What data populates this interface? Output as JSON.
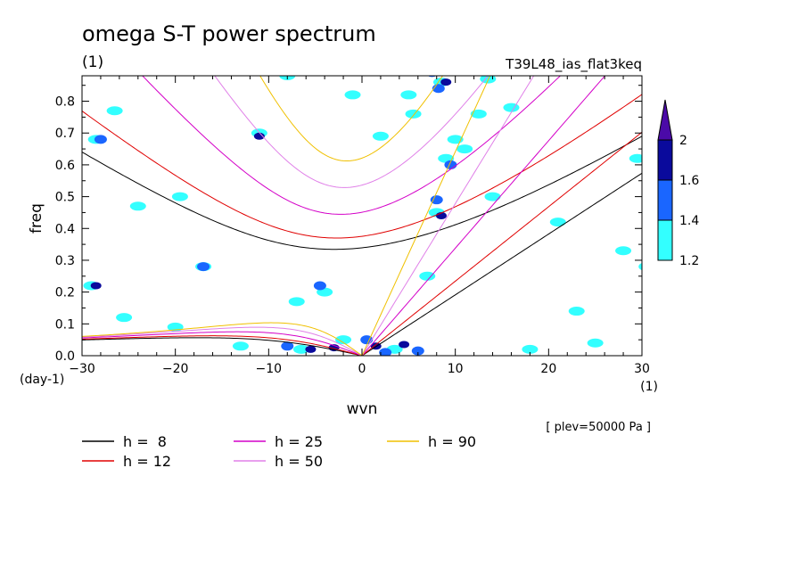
{
  "chart_data": {
    "type": "contour",
    "title": "omega S-T power spectrum",
    "subtitle_units": "(1)",
    "run_label": "T39L48_ias_flat3keq",
    "xlabel": "wvn",
    "ylabel": "freq",
    "x_units": "(1)",
    "y_units": "(day-1)",
    "plev_note": "[ plev=50000 Pa ]",
    "xlim": [
      -30,
      30
    ],
    "ylim": [
      0,
      0.88
    ],
    "x_ticks": [
      -30,
      -20,
      -10,
      0,
      10,
      20,
      30
    ],
    "x_tick_labels": [
      "−30",
      "−20",
      "−10",
      "0",
      "10",
      "20",
      "30"
    ],
    "y_ticks": [
      0.0,
      0.1,
      0.2,
      0.3,
      0.4,
      0.5,
      0.6,
      0.7,
      0.8
    ],
    "y_tick_labels": [
      "0.0",
      "0.1",
      "0.2",
      "0.3",
      "0.4",
      "0.5",
      "0.6",
      "0.7",
      "0.8"
    ],
    "colorbar": {
      "levels": [
        1.2,
        1.4,
        1.6,
        2
      ],
      "labels": [
        "1.2",
        "1.4",
        "1.6",
        "2"
      ],
      "colors": [
        "#33ffff",
        "#1a66ff",
        "#0a0a9c",
        "#4b0aa8"
      ]
    },
    "dispersion_curves": [
      {
        "label": "h =  8",
        "h": 8,
        "color": "#000000"
      },
      {
        "label": "h = 12",
        "h": 12,
        "color": "#e00000"
      },
      {
        "label": "h = 25",
        "h": 25,
        "color": "#d400c8"
      },
      {
        "label": "h = 50",
        "h": 50,
        "color": "#e080e8"
      },
      {
        "label": "h = 90",
        "h": 90,
        "color": "#f0c000"
      }
    ],
    "power_blobs": [
      {
        "x": -5.5,
        "y": 0.02,
        "level": 3
      },
      {
        "x": -3,
        "y": 0.025,
        "level": 3
      },
      {
        "x": 1.5,
        "y": 0.03,
        "level": 3
      },
      {
        "x": 4.5,
        "y": 0.035,
        "level": 3
      },
      {
        "x": -8,
        "y": 0.03,
        "level": 2
      },
      {
        "x": 0.5,
        "y": 0.05,
        "level": 2
      },
      {
        "x": 2.5,
        "y": 0.01,
        "level": 2
      },
      {
        "x": 6,
        "y": 0.015,
        "level": 2
      },
      {
        "x": 9,
        "y": 0.86,
        "level": 3
      },
      {
        "x": 9.5,
        "y": 0.6,
        "level": 2
      },
      {
        "x": 8,
        "y": 0.49,
        "level": 2
      },
      {
        "x": 8.5,
        "y": 0.44,
        "level": 3
      },
      {
        "x": 8.2,
        "y": 0.84,
        "level": 2
      },
      {
        "x": 7.5,
        "y": 0.89,
        "level": 2
      },
      {
        "x": -28.5,
        "y": 0.22,
        "level": 3
      },
      {
        "x": -28,
        "y": 0.68,
        "level": 2
      },
      {
        "x": -11,
        "y": 0.69,
        "level": 3
      },
      {
        "x": -17,
        "y": 0.28,
        "level": 2
      },
      {
        "x": -4.5,
        "y": 0.22,
        "level": 2
      },
      {
        "x": -7,
        "y": 0.17,
        "level": 1
      },
      {
        "x": -4,
        "y": 0.2,
        "level": 1
      },
      {
        "x": -29,
        "y": 0.22,
        "level": 1
      },
      {
        "x": -28.5,
        "y": 0.68,
        "level": 1
      },
      {
        "x": -11,
        "y": 0.7,
        "level": 1
      },
      {
        "x": -17,
        "y": 0.28,
        "level": 1
      },
      {
        "x": 9,
        "y": 0.62,
        "level": 1
      },
      {
        "x": 8.5,
        "y": 0.86,
        "level": 1
      },
      {
        "x": 8,
        "y": 0.45,
        "level": 1
      },
      {
        "x": 10,
        "y": 0.68,
        "level": 1
      },
      {
        "x": 11,
        "y": 0.65,
        "level": 1
      },
      {
        "x": -2,
        "y": 0.05,
        "level": 1
      },
      {
        "x": -6.5,
        "y": 0.02,
        "level": 1
      },
      {
        "x": 3.5,
        "y": 0.02,
        "level": 1
      },
      {
        "x": 13.5,
        "y": 0.87,
        "level": 1
      },
      {
        "x": 30.5,
        "y": 0.28,
        "level": 1
      },
      {
        "x": 29.5,
        "y": 0.62,
        "level": 1
      },
      {
        "x": -24,
        "y": 0.47,
        "level": 1
      },
      {
        "x": -19.5,
        "y": 0.5,
        "level": 1
      },
      {
        "x": -25.5,
        "y": 0.12,
        "level": 1
      },
      {
        "x": 5,
        "y": 0.82,
        "level": 1
      },
      {
        "x": 5.5,
        "y": 0.76,
        "level": 1
      },
      {
        "x": 12.5,
        "y": 0.76,
        "level": 1
      },
      {
        "x": 14,
        "y": 0.5,
        "level": 1
      },
      {
        "x": 18,
        "y": 0.02,
        "level": 1
      },
      {
        "x": 23,
        "y": 0.14,
        "level": 1
      },
      {
        "x": 25,
        "y": 0.04,
        "level": 1
      },
      {
        "x": -1,
        "y": 0.82,
        "level": 1
      },
      {
        "x": -26.5,
        "y": 0.77,
        "level": 1
      },
      {
        "x": -20,
        "y": 0.09,
        "level": 1
      },
      {
        "x": 7,
        "y": 0.25,
        "level": 1
      },
      {
        "x": 28,
        "y": 0.33,
        "level": 1
      },
      {
        "x": 2,
        "y": 0.69,
        "level": 1
      },
      {
        "x": -13,
        "y": 0.03,
        "level": 1
      },
      {
        "x": 16,
        "y": 0.78,
        "level": 1
      },
      {
        "x": -8,
        "y": 0.88,
        "level": 1
      },
      {
        "x": 21,
        "y": 0.42,
        "level": 1
      }
    ]
  }
}
